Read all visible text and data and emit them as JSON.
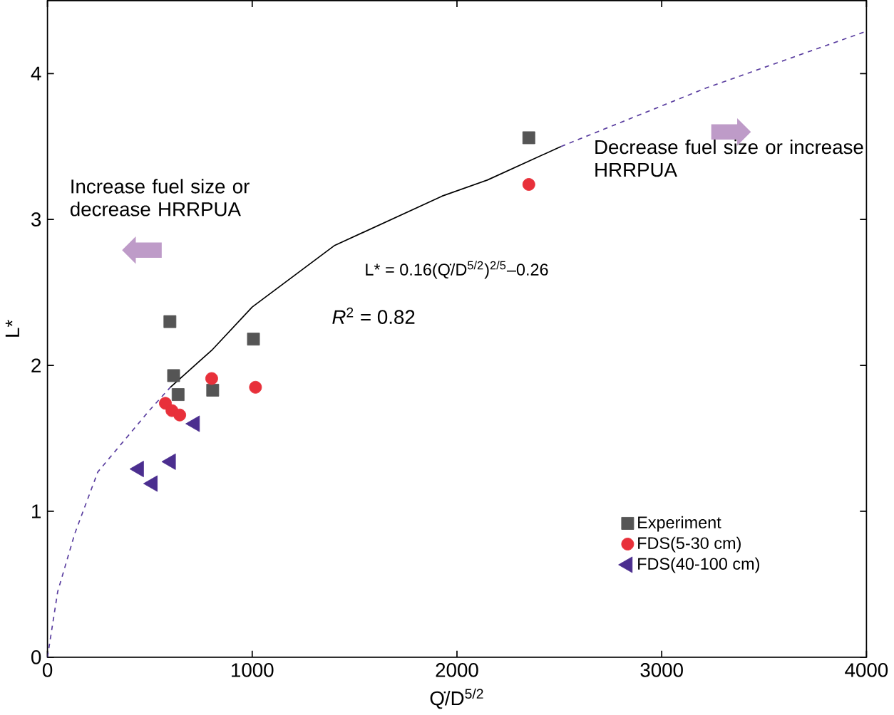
{
  "chart_data": {
    "type": "scatter",
    "xlabel": "Q̇/D$^{5/2}$",
    "ylabel": "L*",
    "xlim": [
      0,
      4000
    ],
    "ylim": [
      0,
      4.5
    ],
    "xticks": [
      0,
      1000,
      2000,
      3000,
      4000
    ],
    "yticks": [
      0,
      1,
      2,
      3,
      4
    ],
    "grid": false,
    "legend": "bottom right",
    "series": [
      {
        "name": "Experiment",
        "color": "#555555",
        "marker": "square",
        "x": [
          598,
          616,
          638,
          807,
          1006,
          2351
        ],
        "values": [
          2.3,
          1.93,
          1.8,
          1.83,
          2.18,
          3.56
        ]
      },
      {
        "name": "FDS(5-30 cm)",
        "color": "#e8303a",
        "marker": "circle",
        "x": [
          576,
          608,
          646,
          802,
          1016,
          2351
        ],
        "values": [
          1.74,
          1.69,
          1.66,
          1.91,
          1.85,
          3.24
        ]
      },
      {
        "name": "FDS(40-100 cm)",
        "color": "#4b2e8f",
        "marker": "triangle",
        "x": [
          720,
          603,
          447,
          514
        ],
        "values": [
          1.6,
          1.34,
          1.29,
          1.19
        ]
      },
      {
        "type": "line",
        "color": "#5b3fa0",
        "line_style": "dashed",
        "marker": "none",
        "x": [
          0,
          50,
          134,
          246,
          497,
          600
        ],
        "values": [
          0,
          0.45,
          0.85,
          1.27,
          1.69,
          1.85
        ]
      },
      {
        "type": "line",
        "color": "#000000",
        "line_style": "solid",
        "marker": "none",
        "x": [
          600,
          807,
          1000,
          1400,
          1927,
          2148,
          2508
        ],
        "values": [
          1.85,
          2.11,
          2.4,
          2.82,
          3.16,
          3.27,
          3.5
        ]
      },
      {
        "type": "line",
        "color": "#5b3fa0",
        "line_style": "dashed",
        "marker": "none",
        "x": [
          2508,
          3215,
          4000
        ],
        "values": [
          3.5,
          3.9,
          4.29
        ]
      }
    ],
    "annotations": [
      "Increase fuel size or decrease HRRPUA",
      "Decrease fuel size or increase HRRPUA",
      "L* = 0.16(Q̇/D$^{5/2}$)$^{2/5}$–0.26",
      "*R*$^{2}$ = 0.82"
    ]
  }
}
